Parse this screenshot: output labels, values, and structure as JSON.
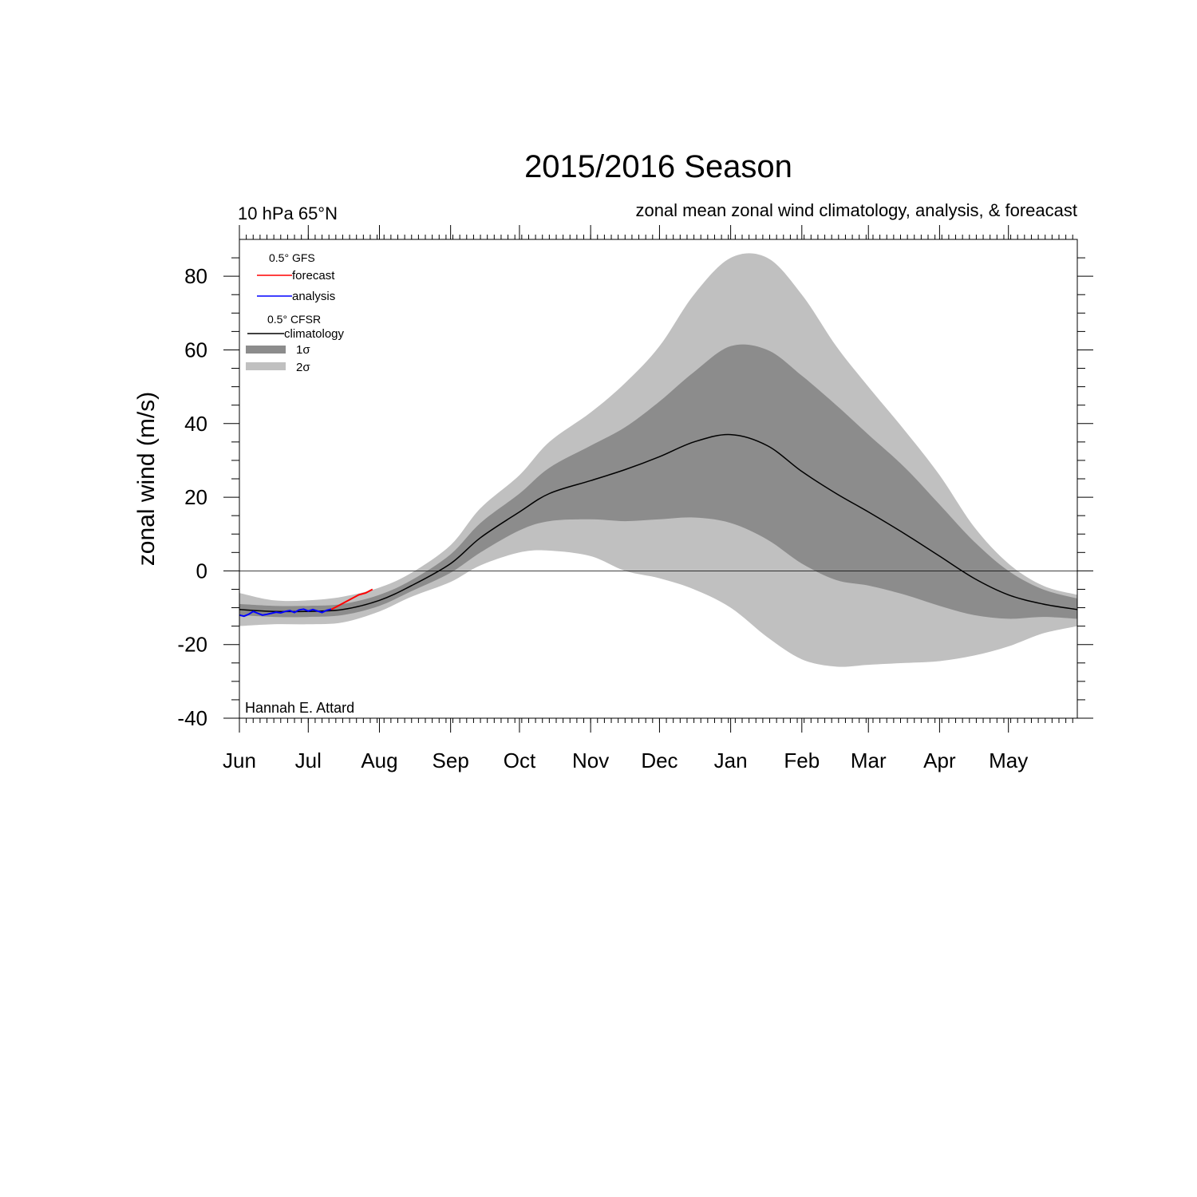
{
  "chart_data": {
    "type": "area",
    "title": "2015/2016 Season",
    "subtitle_left": "10 hPa 65°N",
    "subtitle_right": "zonal mean zonal wind climatology, analysis, & foreacast",
    "ylabel": "zonal wind (m/s)",
    "xlabel": "",
    "ylim": [
      -40,
      90
    ],
    "yticks": [
      -40,
      -20,
      0,
      20,
      40,
      60,
      80
    ],
    "xlim": [
      0,
      365
    ],
    "months": [
      {
        "label": "Jun",
        "day": 0
      },
      {
        "label": "Jul",
        "day": 30
      },
      {
        "label": "Aug",
        "day": 61
      },
      {
        "label": "Sep",
        "day": 92
      },
      {
        "label": "Oct",
        "day": 122
      },
      {
        "label": "Nov",
        "day": 153
      },
      {
        "label": "Dec",
        "day": 183
      },
      {
        "label": "Jan",
        "day": 214
      },
      {
        "label": "Feb",
        "day": 245
      },
      {
        "label": "Mar",
        "day": 274
      },
      {
        "label": "Apr",
        "day": 305
      },
      {
        "label": "May",
        "day": 335
      }
    ],
    "x_days": [
      0,
      15,
      30,
      45,
      61,
      75,
      92,
      105,
      122,
      135,
      153,
      168,
      183,
      198,
      214,
      230,
      245,
      260,
      274,
      290,
      305,
      320,
      335,
      350,
      365
    ],
    "climatology": [
      -10.5,
      -11,
      -11,
      -10.5,
      -8,
      -4,
      2,
      9,
      16,
      21,
      24.5,
      27.5,
      31,
      35,
      37,
      34,
      27,
      21,
      16,
      10,
      4,
      -2,
      -6.5,
      -9,
      -10.5
    ],
    "sigma1_upper": [
      -9,
      -9.5,
      -9.5,
      -9,
      -6.5,
      -2.5,
      4.5,
      13,
      21,
      28,
      34,
      39,
      46,
      54,
      61,
      60,
      53,
      45,
      37,
      28,
      18,
      8,
      0,
      -5,
      -7.5
    ],
    "sigma1_lower": [
      -12,
      -12.5,
      -12.5,
      -12,
      -9.5,
      -5.5,
      -0.5,
      5,
      11,
      13.5,
      14,
      13.5,
      14,
      14.5,
      13,
      8.5,
      2,
      -2.5,
      -4,
      -6.5,
      -9.5,
      -12,
      -13,
      -12.5,
      -13
    ],
    "sigma2_upper": [
      -6,
      -8,
      -8,
      -7,
      -4.5,
      -0.5,
      7,
      17,
      26,
      35,
      43,
      51,
      61,
      75,
      85,
      85,
      75,
      61,
      50,
      38,
      26,
      12,
      2,
      -4,
      -6.5
    ],
    "sigma2_lower": [
      -15,
      -14.5,
      -14.5,
      -14,
      -11,
      -7,
      -3,
      1.5,
      5,
      5.5,
      4,
      0,
      -2,
      -5,
      -10,
      -18,
      -24,
      -26,
      -25.5,
      -25,
      -24.5,
      -23,
      -20.5,
      -17,
      -15
    ],
    "series": [
      {
        "name": "forecast",
        "color": "#ff0000",
        "x": [
          40,
          43,
          46,
          49,
          52,
          55,
          58
        ],
        "values": [
          -10.5,
          -9.5,
          -8.5,
          -7.5,
          -6.5,
          -6,
          -5
        ]
      },
      {
        "name": "analysis",
        "color": "#0000ff",
        "x": [
          0,
          2,
          4,
          6,
          8,
          10,
          12,
          14,
          16,
          18,
          20,
          22,
          24,
          26,
          28,
          30,
          32,
          34,
          36,
          38,
          40
        ],
        "values": [
          -12,
          -12.3,
          -11.8,
          -11,
          -11.5,
          -12,
          -11.8,
          -11.5,
          -11.2,
          -11.4,
          -11,
          -10.8,
          -11.3,
          -10.6,
          -10.4,
          -10.9,
          -10.5,
          -10.9,
          -11.3,
          -10.7,
          -10.4
        ]
      }
    ],
    "legend": {
      "gfs_header": "0.5°  GFS",
      "forecast_label": "forecast",
      "analysis_label": "analysis",
      "cfsr_header": "0.5° CFSR",
      "climatology_label": "climatology",
      "sigma1_label": "1σ",
      "sigma2_label": "2σ",
      "placement": "top-left"
    },
    "colors": {
      "sigma1": "#8c8c8c",
      "sigma2": "#c0c0c0",
      "climatology": "#000000"
    },
    "credit": "Hannah E. Attard"
  }
}
